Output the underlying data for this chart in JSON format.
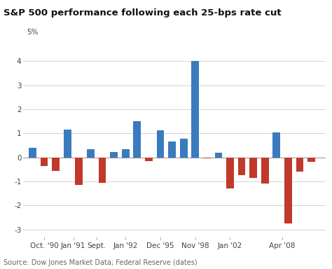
{
  "title": "S&P 500 performance following each 25-bps rate cut",
  "source": "Source: Dow Jones Market Data; Federal Reserve (dates)",
  "ylim": [
    -3.3,
    5.2
  ],
  "yticks": [
    -3,
    -2,
    -1,
    0,
    1,
    2,
    3,
    4
  ],
  "bars": [
    {
      "x": 0,
      "val": 0.4,
      "color": "#3a7abf"
    },
    {
      "x": 1,
      "val": -0.35,
      "color": "#c0392b"
    },
    {
      "x": 2,
      "val": -0.55,
      "color": "#c0392b"
    },
    {
      "x": 3,
      "val": 1.15,
      "color": "#3a7abf"
    },
    {
      "x": 4,
      "val": -1.15,
      "color": "#c0392b"
    },
    {
      "x": 5,
      "val": 0.35,
      "color": "#3a7abf"
    },
    {
      "x": 6,
      "val": -1.05,
      "color": "#c0392b"
    },
    {
      "x": 7,
      "val": 0.22,
      "color": "#3a7abf"
    },
    {
      "x": 8,
      "val": 0.35,
      "color": "#3a7abf"
    },
    {
      "x": 9,
      "val": 1.5,
      "color": "#3a7abf"
    },
    {
      "x": 10,
      "val": -0.15,
      "color": "#c0392b"
    },
    {
      "x": 11,
      "val": 1.12,
      "color": "#3a7abf"
    },
    {
      "x": 12,
      "val": 0.65,
      "color": "#3a7abf"
    },
    {
      "x": 13,
      "val": 0.78,
      "color": "#3a7abf"
    },
    {
      "x": 14,
      "val": 4.0,
      "color": "#3a7abf"
    },
    {
      "x": 15,
      "val": -0.05,
      "color": "#c0392b"
    },
    {
      "x": 16,
      "val": 0.2,
      "color": "#3a7abf"
    },
    {
      "x": 17,
      "val": -1.3,
      "color": "#c0392b"
    },
    {
      "x": 18,
      "val": -0.75,
      "color": "#c0392b"
    },
    {
      "x": 19,
      "val": -0.85,
      "color": "#c0392b"
    },
    {
      "x": 20,
      "val": -1.1,
      "color": "#c0392b"
    },
    {
      "x": 21,
      "val": 1.05,
      "color": "#3a7abf"
    },
    {
      "x": 22,
      "val": -2.75,
      "color": "#c0392b"
    },
    {
      "x": 23,
      "val": -0.6,
      "color": "#c0392b"
    },
    {
      "x": 24,
      "val": -0.18,
      "color": "#c0392b"
    }
  ],
  "group_tick_positions": [
    1.0,
    3.5,
    5.5,
    8.0,
    11.0,
    14.0,
    17.0,
    21.5
  ],
  "group_labels": [
    "Oct. '90",
    "Jan '91",
    "Sept.",
    "Jan '92",
    "Dec '95",
    "Nov '98",
    "Jan '02",
    "Apr '08"
  ],
  "bar_width": 0.65,
  "background_color": "#ffffff",
  "grid_color": "#cccccc",
  "title_fontsize": 9.5,
  "source_fontsize": 7.0,
  "tick_fontsize": 7.5
}
